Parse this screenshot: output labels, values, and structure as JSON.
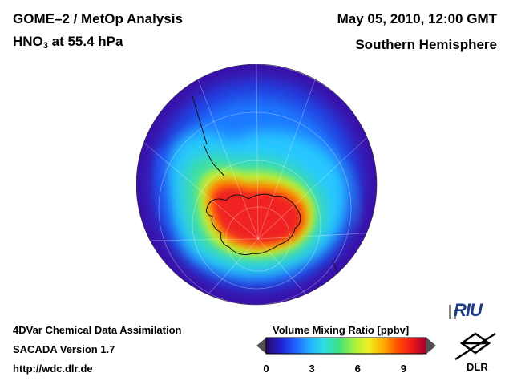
{
  "header": {
    "title": "GOME–2 / MetOp Analysis",
    "species_main": "HNO",
    "species_sub": "3",
    "species_rest": " at 55.4 hPa",
    "datetime": "May 05, 2010, 12:00 GMT",
    "region": "Southern Hemisphere"
  },
  "footer": {
    "line1": "4DVar Chemical Data Assimilation",
    "line2": "SACADA Version 1.7",
    "line3": "http://wdc.dlr.de"
  },
  "colorbar": {
    "title": "Volume Mixing Ratio [ppbv]",
    "ticks": [
      "0",
      "3",
      "6",
      "9"
    ],
    "min": 0,
    "max": 10.5,
    "colors": [
      "#2a0a6a",
      "#2020d0",
      "#2060ff",
      "#20b0ff",
      "#30e0e0",
      "#40e080",
      "#a0f040",
      "#f0f020",
      "#ffb000",
      "#ff5000",
      "#f01818",
      "#a00030"
    ]
  },
  "logos": {
    "riu": "RIU",
    "dlr": "DLR"
  },
  "map": {
    "projection": "orthographic polar (south pole centered)",
    "field_peak_ppbv": 10,
    "field_background_ppbv": 1
  }
}
